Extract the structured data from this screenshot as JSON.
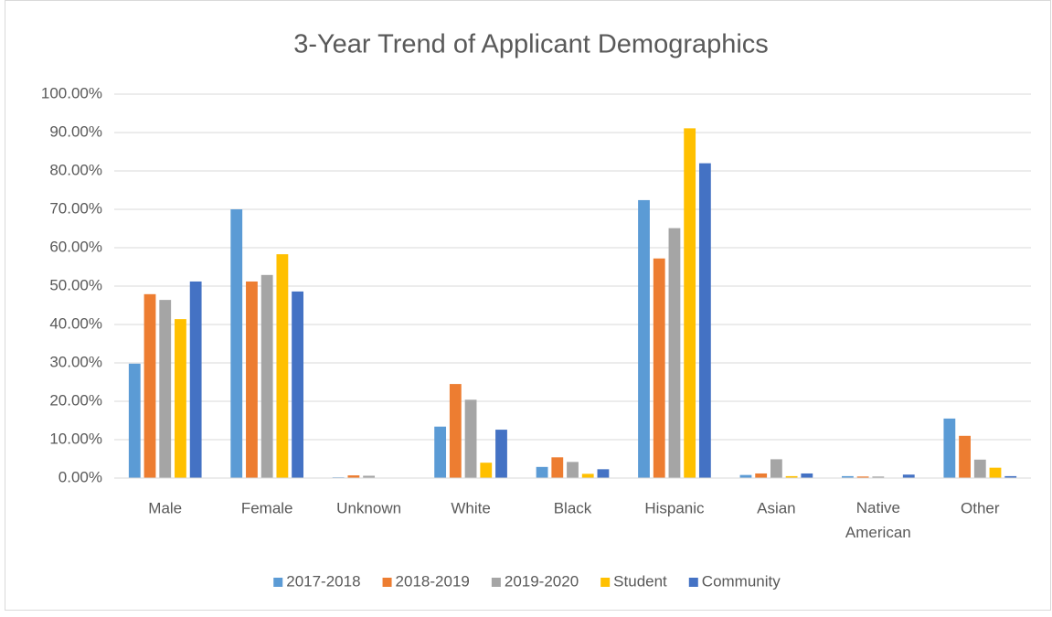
{
  "chart_data": {
    "type": "bar",
    "title": "3-Year Trend of Applicant Demographics",
    "categories": [
      "Male",
      "Female",
      "Unknown",
      "White",
      "Black",
      "Hispanic",
      "Asian",
      "Native American",
      "Other"
    ],
    "series": [
      {
        "name": "2017-2018",
        "color": "#5b9bd5",
        "values": [
          29.8,
          70.0,
          0.2,
          13.4,
          2.9,
          72.4,
          0.8,
          0.5,
          15.5
        ]
      },
      {
        "name": "2018-2019",
        "color": "#ed7d31",
        "values": [
          47.9,
          51.2,
          0.7,
          24.5,
          5.4,
          57.2,
          1.2,
          0.4,
          11.0
        ]
      },
      {
        "name": "2019-2020",
        "color": "#a5a5a5",
        "values": [
          46.4,
          52.9,
          0.6,
          20.4,
          4.2,
          65.1,
          4.9,
          0.4,
          4.8
        ]
      },
      {
        "name": "Student",
        "color": "#ffc000",
        "values": [
          41.4,
          58.3,
          0,
          4.0,
          1.1,
          91.1,
          0.5,
          0,
          2.7
        ]
      },
      {
        "name": "Community",
        "color": "#4472c4",
        "values": [
          51.2,
          48.6,
          0,
          12.6,
          2.3,
          82.0,
          1.2,
          0.9,
          0.5
        ]
      }
    ],
    "ylim": [
      0,
      100
    ],
    "yticks": [
      {
        "value": 0,
        "label": "0.00%"
      },
      {
        "value": 10,
        "label": "10.00%"
      },
      {
        "value": 20,
        "label": "20.00%"
      },
      {
        "value": 30,
        "label": "30.00%"
      },
      {
        "value": 40,
        "label": "40.00%"
      },
      {
        "value": 50,
        "label": "50.00%"
      },
      {
        "value": 60,
        "label": "60.00%"
      },
      {
        "value": 70,
        "label": "70.00%"
      },
      {
        "value": 80,
        "label": "80.00%"
      },
      {
        "value": 90,
        "label": "90.00%"
      },
      {
        "value": 100,
        "label": "100.00%"
      }
    ],
    "grid": true,
    "legend": "bottom"
  }
}
